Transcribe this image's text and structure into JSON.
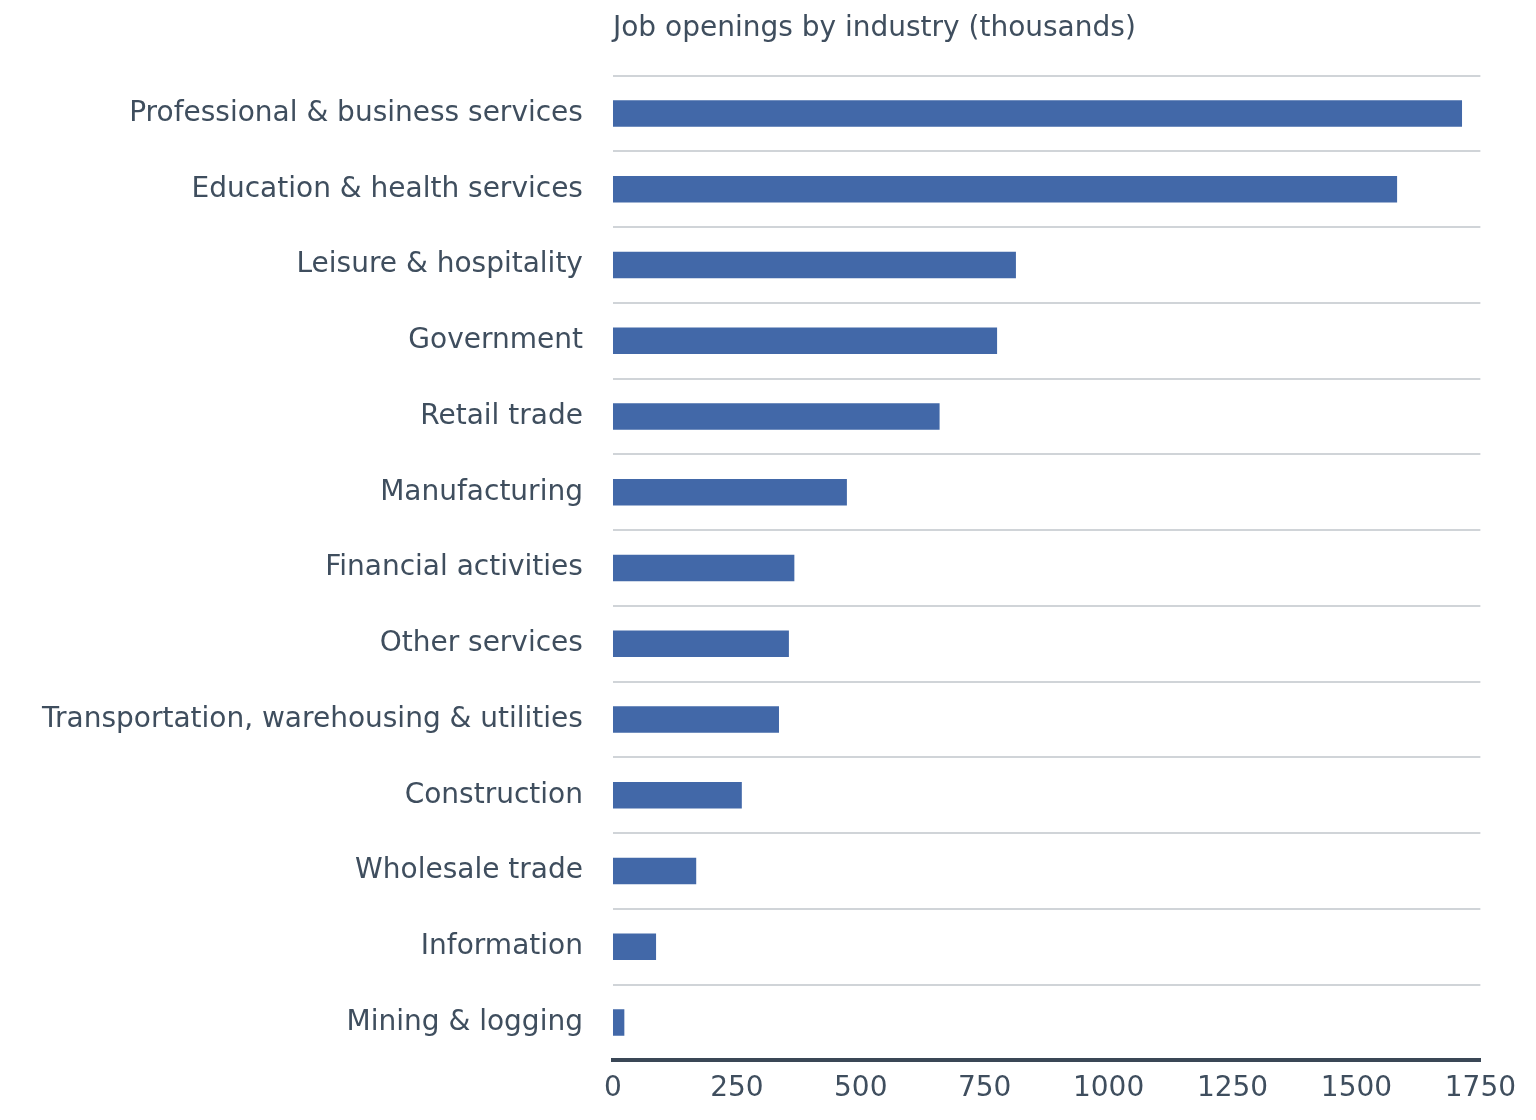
{
  "chart_data": {
    "type": "bar",
    "orientation": "horizontal",
    "title": "Job openings by industry (thousands)",
    "categories": [
      "Professional & business services",
      "Education & health services",
      "Leisure & hospitality",
      "Government",
      "Retail trade",
      "Manufacturing",
      "Financial activities",
      "Other services",
      "Transportation, warehousing & utilities",
      "Construction",
      "Wholesale trade",
      "Information",
      "Mining & logging"
    ],
    "values": [
      1713,
      1582,
      813,
      775,
      659,
      472,
      366,
      355,
      335,
      260,
      168,
      87,
      23
    ],
    "color": "#4268a8",
    "xlim": [
      0,
      1750
    ],
    "xticks": [
      0,
      250,
      500,
      750,
      1000,
      1250,
      1500,
      1750
    ],
    "grid": "y",
    "legend": false
  }
}
